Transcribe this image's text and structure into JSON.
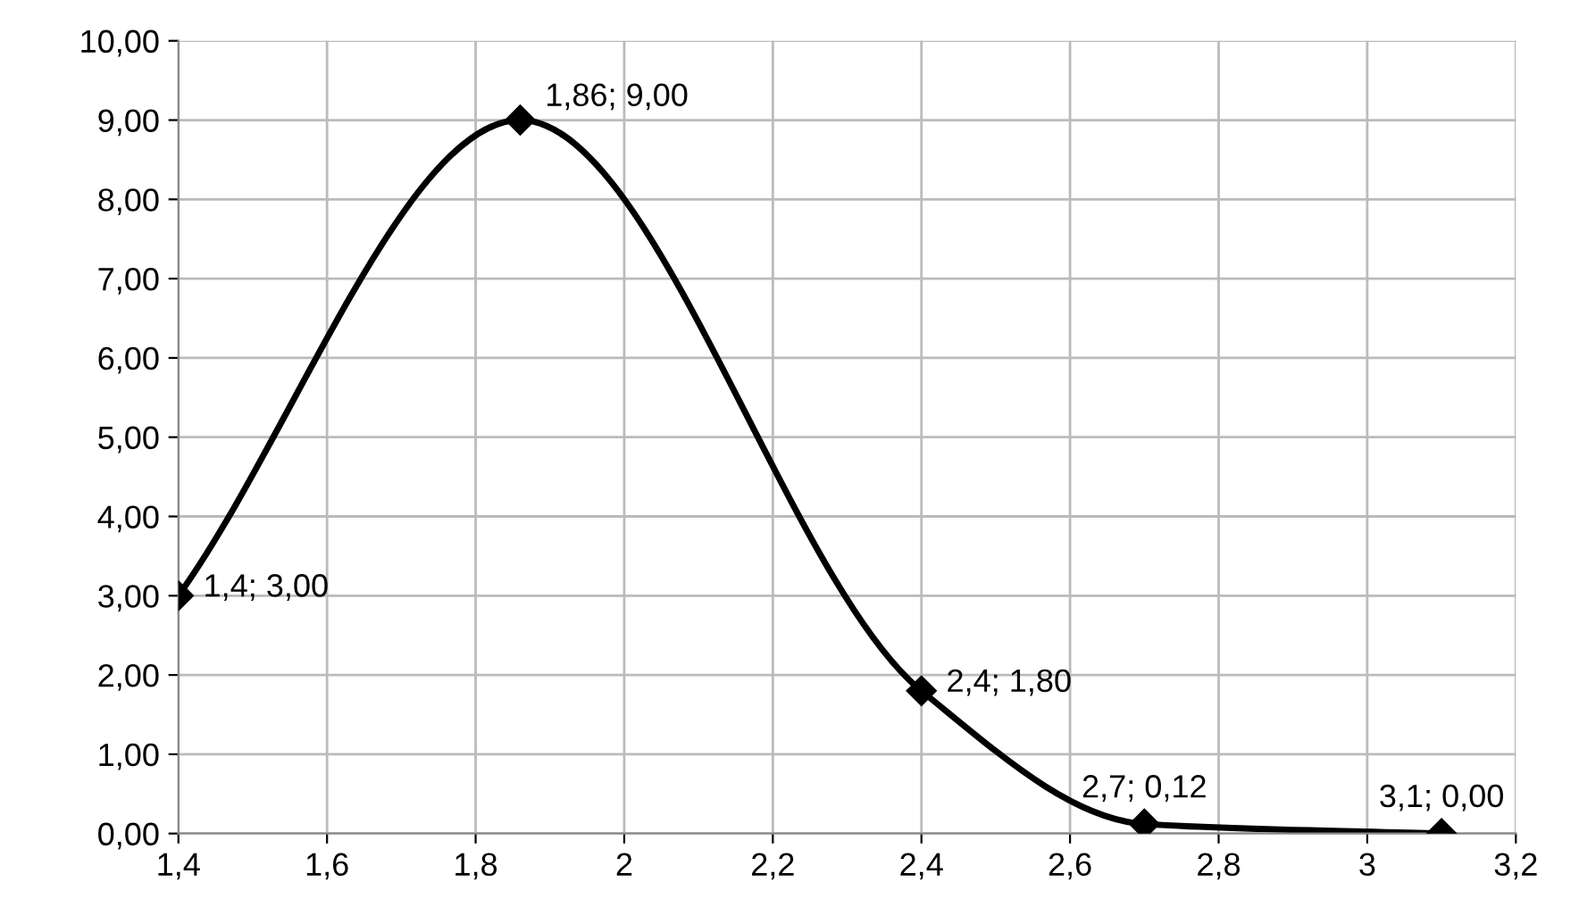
{
  "chart_data": {
    "type": "line",
    "x": [
      1.4,
      1.86,
      2.4,
      2.7,
      3.1
    ],
    "series": [
      {
        "color": "#000000",
        "values": [
          3.0,
          9.0,
          1.8,
          0.12,
          0.0
        ],
        "value_labels": [
          "1,4; 3,00",
          "1,86; 9,00",
          "2,4; 1,80",
          "2,7; 0,12",
          "3,1; 0,00"
        ]
      }
    ],
    "xlim": [
      1.4,
      3.2
    ],
    "xticks": [
      {
        "value": 1.4,
        "label": "1,4"
      },
      {
        "value": 1.6,
        "label": "1,6"
      },
      {
        "value": 1.8,
        "label": "1,8"
      },
      2,
      {
        "value": 2.2,
        "label": "2,2"
      },
      {
        "value": 2.4,
        "label": "2,4"
      },
      {
        "value": 2.6,
        "label": "2,6"
      },
      {
        "value": 2.8,
        "label": "2,8"
      },
      3,
      {
        "value": 3.2,
        "label": "3,2"
      }
    ],
    "ylim": [
      0,
      10
    ],
    "yticks": [
      {
        "value": 0,
        "label": "0,00"
      },
      {
        "value": 1,
        "label": "1,00"
      },
      {
        "value": 2,
        "label": "2,00"
      },
      {
        "value": 3,
        "label": "3,00"
      },
      {
        "value": 4,
        "label": "4,00"
      },
      {
        "value": 5,
        "label": "5,00"
      },
      {
        "value": 6,
        "label": "6,00"
      },
      {
        "value": 7,
        "label": "7,00"
      },
      {
        "value": 8,
        "label": "8,00"
      },
      {
        "value": 9,
        "label": "9,00"
      },
      {
        "value": 10,
        "label": "10,00"
      }
    ],
    "grid": true,
    "marker": "diamond",
    "line_style": "solid"
  }
}
